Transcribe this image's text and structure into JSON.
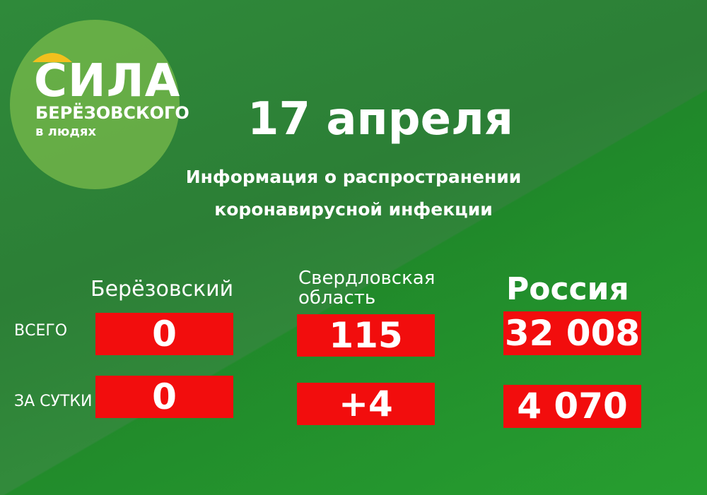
{
  "logo": {
    "title": "СИЛА",
    "line1": "БЕРЁЗОВСКОГО",
    "line2": "в людях"
  },
  "header": {
    "date": "17 апреля",
    "subtitle": "Информация о распространении коронавирусной инфекции"
  },
  "table": {
    "columns": [
      "Берёзовский",
      "Свердловская область",
      "Россия"
    ],
    "rows": [
      {
        "label": "ВСЕГО",
        "cells": [
          "0",
          "115",
          "32 008"
        ]
      },
      {
        "label": "ЗА СУТКИ",
        "cells": [
          "0",
          "+4",
          "4 070"
        ]
      }
    ]
  }
}
